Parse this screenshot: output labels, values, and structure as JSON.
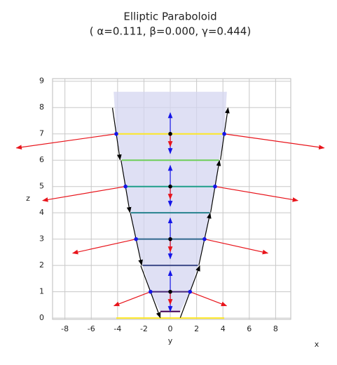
{
  "chart_data": {
    "type": "paraboloid",
    "title": "Elliptic Paraboloid",
    "subtitle": "( α=0.111, β=0.000, γ=0.444)",
    "x_label": "y",
    "y_label": "z",
    "depth_label": "x",
    "xlim": [
      -8.94,
      9.15
    ],
    "ylim": [
      -0.05,
      9.1
    ],
    "xticks": [
      -8,
      -6,
      -4,
      -2,
      0,
      2,
      4,
      6,
      8
    ],
    "yticks": [
      0,
      1,
      2,
      3,
      4,
      5,
      6,
      7,
      8,
      9
    ],
    "grid": true,
    "surface": {
      "color": "#d4d6f0",
      "top_z": 8.6,
      "top_half_width": 4.3
    },
    "floor_line": {
      "z": 0,
      "half_width": 4.1,
      "color": "#fde725"
    },
    "levels": [
      {
        "z": 0.25,
        "half_width": 0.75,
        "color": "#440154",
        "marked": false
      },
      {
        "z": 1,
        "half_width": 1.5,
        "color": "#482878",
        "marked": true
      },
      {
        "z": 2,
        "half_width": 2.1,
        "color": "#3e4a89",
        "marked": false
      },
      {
        "z": 3,
        "half_width": 2.6,
        "color": "#31688e",
        "marked": true
      },
      {
        "z": 4,
        "half_width": 3.0,
        "color": "#26828e",
        "marked": false
      },
      {
        "z": 5,
        "half_width": 3.4,
        "color": "#1f9e89",
        "marked": true
      },
      {
        "z": 6,
        "half_width": 3.7,
        "color": "#6ece58",
        "marked": false
      },
      {
        "z": 7,
        "half_width": 4.1,
        "color": "#fde725",
        "marked": true
      }
    ]
  }
}
